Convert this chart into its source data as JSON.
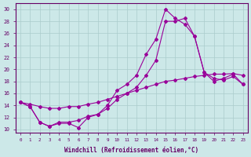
{
  "xlabel": "Windchill (Refroidissement éolien,°C)",
  "ylabel": "",
  "background_color": "#cce8e8",
  "grid_color": "#aacccc",
  "line_color": "#990099",
  "xlim_min": -0.5,
  "xlim_max": 23.5,
  "ylim_min": 9.5,
  "ylim_max": 31.0,
  "xticks": [
    0,
    1,
    2,
    3,
    4,
    5,
    6,
    7,
    8,
    9,
    10,
    11,
    12,
    13,
    14,
    15,
    16,
    17,
    18,
    19,
    20,
    21,
    22,
    23
  ],
  "yticks": [
    10,
    12,
    14,
    16,
    18,
    20,
    22,
    24,
    26,
    28,
    30
  ],
  "line1_x": [
    0,
    1,
    2,
    3,
    4,
    5,
    6,
    7,
    8,
    9,
    10,
    11,
    12,
    13,
    14,
    15,
    16,
    17,
    18,
    19,
    20,
    21,
    22,
    23
  ],
  "line1_y": [
    14.5,
    13.8,
    11.2,
    10.5,
    11.0,
    11.0,
    10.3,
    12.0,
    12.5,
    14.0,
    16.5,
    17.5,
    19.0,
    22.5,
    25.0,
    30.0,
    28.5,
    27.5,
    25.5,
    19.5,
    18.0,
    18.5,
    19.2,
    17.5
  ],
  "line2_x": [
    0,
    1,
    2,
    3,
    4,
    5,
    6,
    7,
    8,
    9,
    10,
    11,
    12,
    13,
    14,
    15,
    16,
    17,
    18,
    19,
    20,
    21,
    22,
    23
  ],
  "line2_y": [
    14.5,
    14.2,
    13.8,
    13.5,
    13.5,
    13.8,
    13.8,
    14.2,
    14.5,
    15.0,
    15.5,
    16.0,
    16.5,
    17.0,
    17.5,
    18.0,
    18.2,
    18.5,
    18.8,
    19.0,
    19.2,
    19.2,
    19.3,
    19.0
  ],
  "line3_x": [
    0,
    1,
    2,
    3,
    4,
    5,
    6,
    7,
    8,
    9,
    10,
    11,
    12,
    13,
    14,
    15,
    16,
    17,
    18,
    19,
    20,
    21,
    22,
    23
  ],
  "line3_y": [
    14.5,
    13.8,
    11.2,
    10.5,
    11.2,
    11.2,
    11.5,
    12.2,
    12.5,
    13.5,
    15.0,
    16.0,
    17.0,
    19.0,
    21.5,
    28.0,
    28.0,
    28.5,
    25.5,
    19.5,
    18.5,
    18.2,
    18.8,
    17.5
  ]
}
